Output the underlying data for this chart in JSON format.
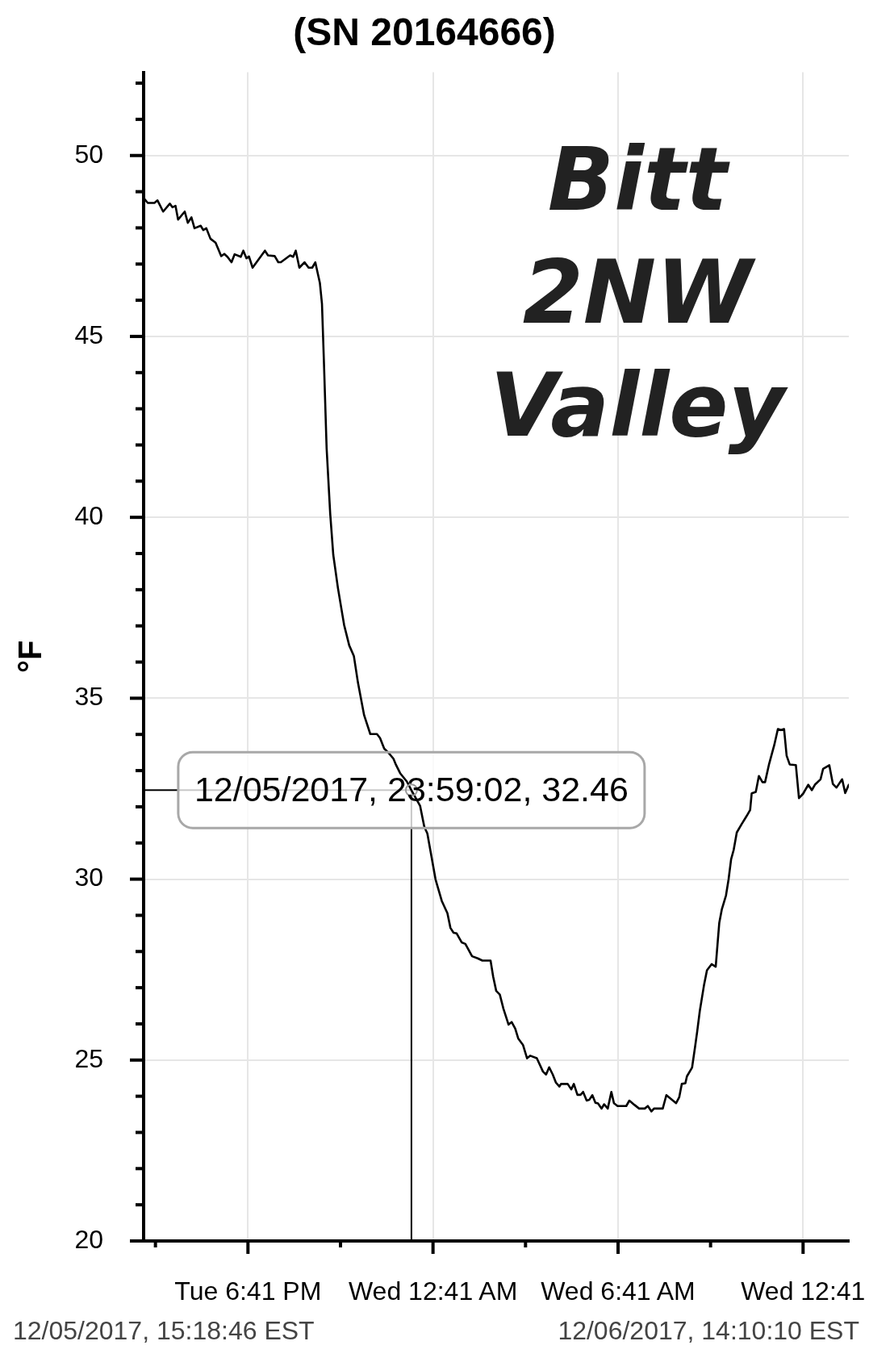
{
  "chart_data": {
    "type": "line",
    "title": "(SN 20164666)",
    "ylabel": "°F",
    "xlim": [
      "2017-12-05T15:18",
      "2017-12-06T14:10"
    ],
    "xticks": [
      {
        "value": "2017-12-05T15:41",
        "label": null
      },
      {
        "value": "2017-12-05T18:41",
        "label": "Tue 6:41 PM"
      },
      {
        "value": "2017-12-05T21:41",
        "label": null
      },
      {
        "value": "2017-12-06T00:41",
        "label": "Wed 12:41 AM"
      },
      {
        "value": "2017-12-06T03:41",
        "label": null
      },
      {
        "value": "2017-12-06T06:41",
        "label": "Wed 6:41 AM"
      },
      {
        "value": "2017-12-06T09:41",
        "label": null
      },
      {
        "value": "2017-12-06T12:41",
        "label": "Wed 12:41"
      }
    ],
    "ylim": [
      20,
      52.3
    ],
    "yticks": [
      20,
      {
        "value": 21,
        "label": null
      },
      {
        "value": 22,
        "label": null
      },
      {
        "value": 23,
        "label": null
      },
      {
        "value": 24,
        "label": null
      },
      25,
      {
        "value": 26,
        "label": null
      },
      {
        "value": 27,
        "label": null
      },
      {
        "value": 28,
        "label": null
      },
      {
        "value": 29,
        "label": null
      },
      30,
      {
        "value": 31,
        "label": null
      },
      {
        "value": 32,
        "label": null
      },
      {
        "value": 33,
        "label": null
      },
      {
        "value": 34,
        "label": null
      },
      35,
      {
        "value": 36,
        "label": null
      },
      {
        "value": 37,
        "label": null
      },
      {
        "value": 38,
        "label": null
      },
      {
        "value": 39,
        "label": null
      },
      40,
      {
        "value": 41,
        "label": null
      },
      {
        "value": 42,
        "label": null
      },
      {
        "value": 43,
        "label": null
      },
      {
        "value": 44,
        "label": null
      },
      45,
      {
        "value": 46,
        "label": null
      },
      {
        "value": 47,
        "label": null
      },
      {
        "value": 48,
        "label": null
      },
      {
        "value": 49,
        "label": null
      },
      50,
      {
        "value": 51,
        "label": null
      },
      {
        "value": 52,
        "label": null
      }
    ],
    "grid": true,
    "legend": false,
    "marker": "none",
    "x": [
      "2017-12-05T15:19",
      "2017-12-05T15:26",
      "2017-12-05T15:39",
      "2017-12-05T15:45",
      "2017-12-05T15:56",
      "2017-12-05T16:09",
      "2017-12-05T16:14",
      "2017-12-05T16:20",
      "2017-12-05T16:25",
      "2017-12-05T16:38",
      "2017-12-05T16:44",
      "2017-12-05T16:51",
      "2017-12-05T16:57",
      "2017-12-05T17:09",
      "2017-12-05T17:14",
      "2017-12-05T17:20",
      "2017-12-05T17:28",
      "2017-12-05T17:38",
      "2017-12-05T17:49",
      "2017-12-05T17:55",
      "2017-12-05T18:01",
      "2017-12-05T18:09",
      "2017-12-05T18:15",
      "2017-12-05T18:27",
      "2017-12-05T18:32",
      "2017-12-05T18:38",
      "2017-12-05T18:43",
      "2017-12-05T18:50",
      "2017-12-05T19:14",
      "2017-12-05T19:20",
      "2017-12-05T19:33",
      "2017-12-05T19:40",
      "2017-12-05T19:45",
      "2017-12-05T20:03",
      "2017-12-05T20:09",
      "2017-12-05T20:14",
      "2017-12-05T20:21",
      "2017-12-05T20:31",
      "2017-12-05T20:39",
      "2017-12-05T20:46",
      "2017-12-05T20:52",
      "2017-12-05T21:01",
      "2017-12-05T21:05",
      "2017-12-05T21:09",
      "2017-12-05T21:14",
      "2017-12-05T21:21",
      "2017-12-05T21:27",
      "2017-12-05T21:36",
      "2017-12-05T21:48",
      "2017-12-05T21:58",
      "2017-12-05T22:07",
      "2017-12-05T22:15",
      "2017-12-05T22:27",
      "2017-12-05T22:39",
      "2017-12-05T22:52",
      "2017-12-05T22:58",
      "2017-12-05T23:06",
      "2017-12-05T23:14",
      "2017-12-05T23:24",
      "2017-12-05T23:29",
      "2017-12-05T23:37",
      "2017-12-05T23:50",
      "2017-12-05T23:59",
      "2017-12-06T00:16",
      "2017-12-06T00:24",
      "2017-12-06T00:30",
      "2017-12-06T00:46",
      "2017-12-06T00:58",
      "2017-12-06T01:09",
      "2017-12-06T01:15",
      "2017-12-06T01:21",
      "2017-12-06T01:27",
      "2017-12-06T01:37",
      "2017-12-06T01:44",
      "2017-12-06T01:57",
      "2017-12-06T02:08",
      "2017-12-06T02:17",
      "2017-12-06T02:33",
      "2017-12-06T02:38",
      "2017-12-06T02:44",
      "2017-12-06T02:51",
      "2017-12-06T02:58",
      "2017-12-06T03:08",
      "2017-12-06T03:14",
      "2017-12-06T03:21",
      "2017-12-06T03:27",
      "2017-12-06T03:36",
      "2017-12-06T03:44",
      "2017-12-06T03:50",
      "2017-12-06T04:03",
      "2017-12-06T04:15",
      "2017-12-06T04:21",
      "2017-12-06T04:27",
      "2017-12-06T04:34",
      "2017-12-06T04:40",
      "2017-12-06T04:47",
      "2017-12-06T04:50",
      "2017-12-06T05:03",
      "2017-12-06T05:10",
      "2017-12-06T05:15",
      "2017-12-06T05:22",
      "2017-12-06T05:28",
      "2017-12-06T05:33",
      "2017-12-06T05:40",
      "2017-12-06T05:45",
      "2017-12-06T05:51",
      "2017-12-06T05:57",
      "2017-12-06T06:02",
      "2017-12-06T06:09",
      "2017-12-06T06:14",
      "2017-12-06T06:21",
      "2017-12-06T06:28",
      "2017-12-06T06:33",
      "2017-12-06T06:40",
      "2017-12-06T06:57",
      "2017-12-06T07:03",
      "2017-12-06T07:13",
      "2017-12-06T07:22",
      "2017-12-06T07:33",
      "2017-12-06T07:39",
      "2017-12-06T07:46",
      "2017-12-06T07:51",
      "2017-12-06T08:08",
      "2017-12-06T08:15",
      "2017-12-06T08:34",
      "2017-12-06T08:40",
      "2017-12-06T08:45",
      "2017-12-06T08:52",
      "2017-12-06T08:55",
      "2017-12-06T09:05",
      "2017-12-06T09:11",
      "2017-12-06T09:15",
      "2017-12-06T09:20",
      "2017-12-06T09:28",
      "2017-12-06T09:34",
      "2017-12-06T09:43",
      "2017-12-06T09:51",
      "2017-12-06T09:55",
      "2017-12-06T09:58",
      "2017-12-06T10:03",
      "2017-12-06T10:11",
      "2017-12-06T10:16",
      "2017-12-06T10:21",
      "2017-12-06T10:26",
      "2017-12-06T10:32",
      "2017-12-06T10:41",
      "2017-12-06T10:51",
      "2017-12-06T10:58",
      "2017-12-06T11:01",
      "2017-12-06T11:09",
      "2017-12-06T11:15",
      "2017-12-06T11:22",
      "2017-12-06T11:27",
      "2017-12-06T11:35",
      "2017-12-06T11:40",
      "2017-12-06T11:45",
      "2017-12-06T11:52",
      "2017-12-06T11:58",
      "2017-12-06T12:04",
      "2017-12-06T12:09",
      "2017-12-06T12:15",
      "2017-12-06T12:27",
      "2017-12-06T12:33",
      "2017-12-06T12:41",
      "2017-12-06T12:51",
      "2017-12-06T12:58",
      "2017-12-06T13:04",
      "2017-12-06T13:15",
      "2017-12-06T13:20",
      "2017-12-06T13:32",
      "2017-12-06T13:39",
      "2017-12-06T13:46",
      "2017-12-06T13:57",
      "2017-12-06T14:03",
      "2017-12-06T14:10"
    ],
    "series": [
      {
        "color": "#000000",
        "values": [
          48.81,
          48.69,
          48.69,
          48.76,
          48.45,
          48.67,
          48.57,
          48.61,
          48.23,
          48.45,
          48.14,
          48.29,
          47.99,
          48.06,
          47.94,
          47.99,
          47.7,
          47.59,
          47.22,
          47.28,
          47.2,
          47.05,
          47.27,
          47.2,
          47.37,
          47.16,
          47.21,
          46.9,
          47.37,
          47.24,
          47.22,
          47.05,
          47.05,
          47.24,
          47.2,
          47.37,
          46.9,
          47.05,
          46.9,
          46.9,
          47.05,
          46.47,
          45.9,
          44.2,
          41.92,
          40.1,
          38.96,
          38.05,
          37.03,
          36.46,
          36.17,
          35.43,
          34.53,
          34.01,
          34.01,
          33.9,
          33.61,
          33.5,
          33.33,
          33.16,
          32.93,
          32.7,
          32.46,
          32.02,
          31.45,
          31.26,
          29.99,
          29.4,
          29.06,
          28.65,
          28.52,
          28.5,
          28.25,
          28.21,
          27.87,
          27.81,
          27.75,
          27.75,
          27.31,
          26.91,
          26.81,
          26.42,
          25.98,
          26.05,
          25.87,
          25.59,
          25.42,
          25.05,
          25.12,
          25.05,
          24.68,
          24.6,
          24.8,
          24.6,
          24.38,
          24.27,
          24.34,
          24.34,
          24.19,
          24.34,
          24.04,
          24.04,
          24.12,
          23.88,
          23.9,
          24.03,
          23.82,
          23.8,
          23.66,
          23.78,
          23.66,
          24.12,
          23.81,
          23.73,
          23.73,
          23.88,
          23.76,
          23.66,
          23.66,
          23.73,
          23.58,
          23.66,
          23.66,
          24.03,
          23.81,
          23.97,
          24.34,
          24.36,
          24.55,
          24.79,
          25.38,
          25.79,
          26.35,
          27.05,
          27.48,
          27.65,
          27.58,
          28.28,
          28.8,
          29.17,
          29.55,
          29.99,
          30.55,
          30.81,
          31.29,
          31.51,
          31.74,
          31.91,
          32.37,
          32.41,
          32.85,
          32.68,
          32.68,
          33.19,
          33.45,
          33.71,
          34.15,
          34.12,
          34.15,
          33.41,
          33.17,
          33.15,
          32.24,
          32.36,
          32.61,
          32.46,
          32.61,
          32.76,
          33.05,
          33.15,
          32.63,
          32.53,
          32.76,
          32.38,
          32.61
        ]
      }
    ],
    "annotations": [
      {
        "text": "12/05/2017, 23:59:02, 32.46",
        "x": "2017-12-05T23:59",
        "y": 32.46
      },
      "12/05/2017, 15:18:46 EST",
      "12/06/2017, 14:10:10 EST",
      "Bitt 2NW Valley"
    ]
  }
}
